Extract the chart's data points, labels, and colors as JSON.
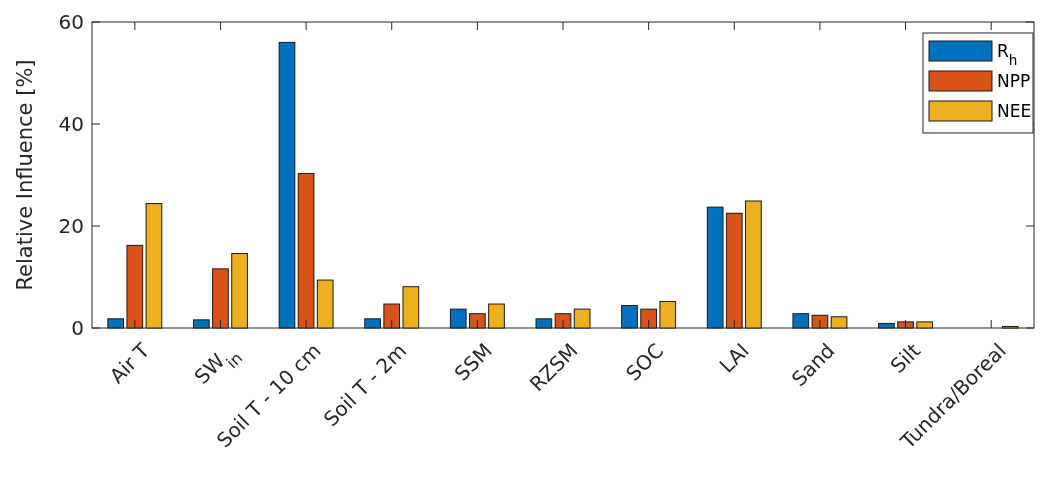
{
  "chart_data": {
    "type": "bar",
    "ylabel": "Relative Influence [%]",
    "categories": [
      "Air T",
      "SW$_{in}$",
      "Soil T - 10 cm",
      "Soil T - 2m",
      "SSM",
      "RZSM",
      "SOC",
      "LAI",
      "Sand",
      "Silt",
      "Tundra/Boreal"
    ],
    "series": [
      {
        "name": "R$_{h}$",
        "color": "#0072bd",
        "values": [
          1.8,
          1.6,
          56.0,
          1.8,
          3.7,
          1.8,
          4.4,
          23.7,
          2.8,
          0.9,
          0
        ]
      },
      {
        "name": "NPP",
        "color": "#d95319",
        "values": [
          16.2,
          11.6,
          30.3,
          4.7,
          2.8,
          2.8,
          3.7,
          22.5,
          2.5,
          1.2,
          0
        ]
      },
      {
        "name": "NEE",
        "color": "#edb120",
        "values": [
          24.4,
          14.6,
          9.4,
          8.1,
          4.7,
          3.7,
          5.2,
          24.9,
          2.2,
          1.2,
          0.3
        ]
      }
    ],
    "ylim": [
      0,
      60
    ],
    "yticks": [
      0,
      20,
      40,
      60
    ],
    "legend": "top right"
  }
}
